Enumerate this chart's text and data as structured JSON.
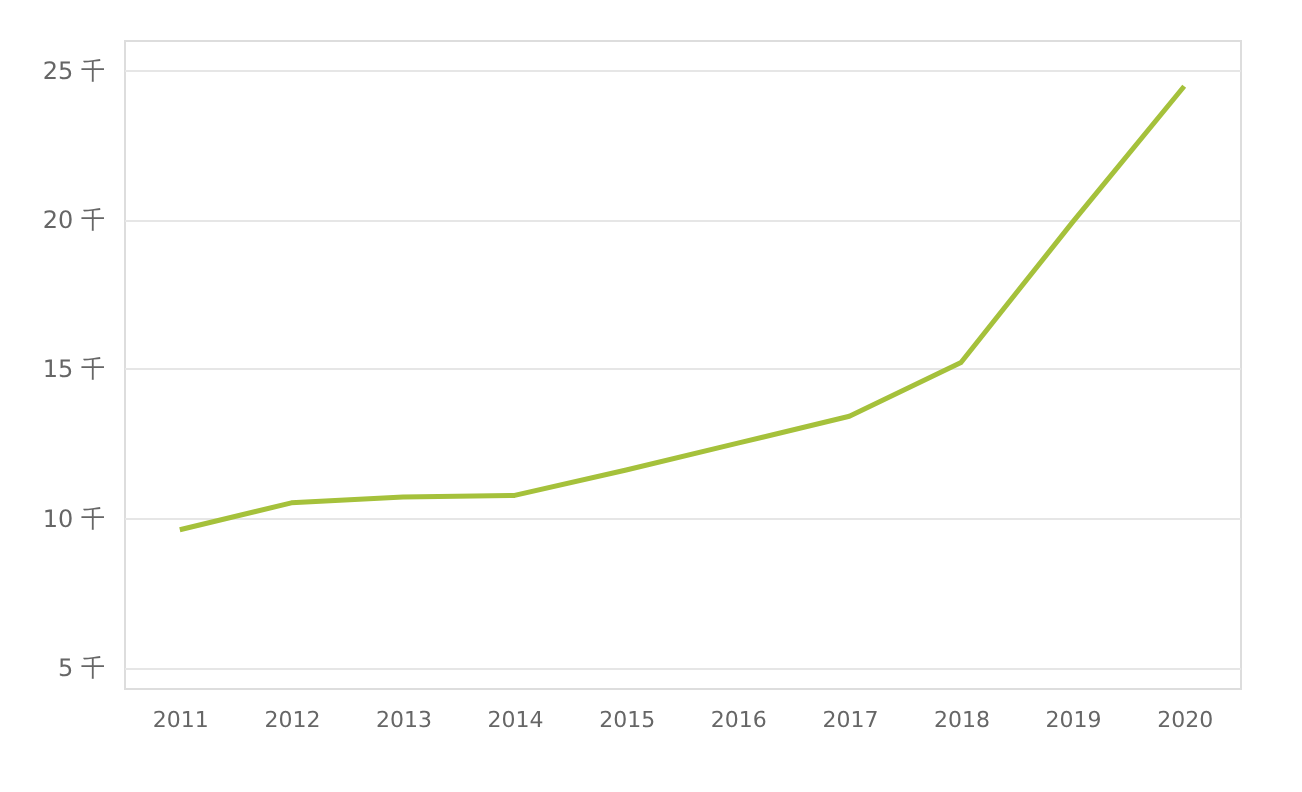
{
  "chart_data": {
    "type": "line",
    "categories": [
      "2011",
      "2012",
      "2013",
      "2014",
      "2015",
      "2016",
      "2017",
      "2018",
      "2019",
      "2020"
    ],
    "series": [
      {
        "color": "#a5c13b",
        "values": [
          9.6,
          10.5,
          10.7,
          10.75,
          11.6,
          12.5,
          13.4,
          15.2,
          19.9,
          24.45
        ]
      }
    ],
    "ylim": [
      4.3,
      26
    ],
    "yticks": [
      {
        "value": 5,
        "label": "5 千"
      },
      {
        "value": 10,
        "label": "10 千"
      },
      {
        "value": 15,
        "label": "15 千"
      },
      {
        "value": 20,
        "label": "20 千"
      },
      {
        "value": 25,
        "label": "25 千"
      }
    ],
    "grid": "y",
    "marker": "none",
    "line_style": "solid"
  }
}
